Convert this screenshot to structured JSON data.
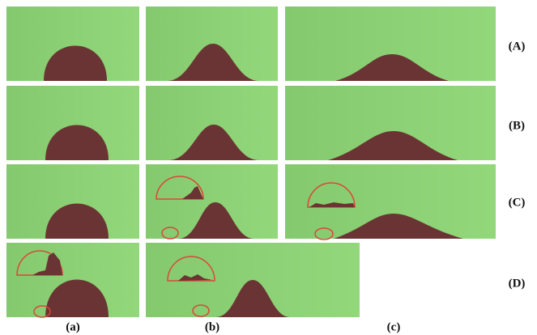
{
  "row_labels": [
    "(A)",
    "(B)",
    "(C)",
    "(D)"
  ],
  "column_labels": [
    "(a)",
    "(b)",
    "(c)"
  ]
}
